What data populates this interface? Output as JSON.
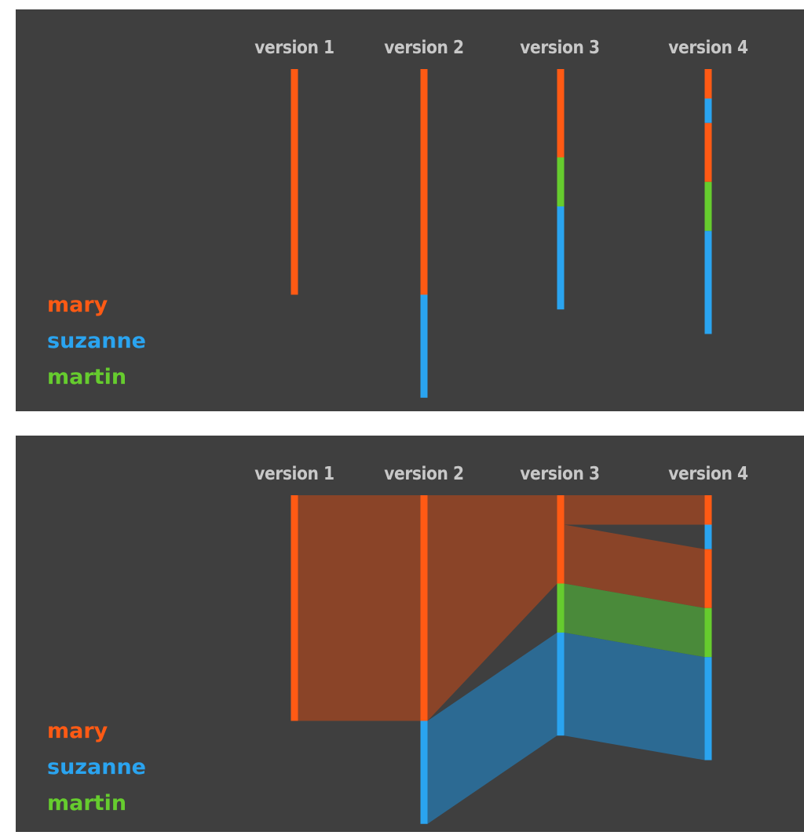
{
  "authors": [
    {
      "name": "mary",
      "color": "#ff5a14",
      "band_color": "#8a4428"
    },
    {
      "name": "suzanne",
      "color": "#2aa4f0",
      "band_color": "#2c6a93"
    },
    {
      "name": "martin",
      "color": "#66cc2e",
      "band_color": "#4a8a3a"
    }
  ],
  "versions": [
    "version 1",
    "version 2",
    "version 3",
    "version 4"
  ],
  "panels": [
    {
      "name": "version-history-bars",
      "show_flows": false
    },
    {
      "name": "version-history-flow",
      "show_flows": true
    }
  ],
  "chart_data": {
    "type": "history-flow",
    "unit": "relative share of document text",
    "versions": [
      {
        "label": "version 1",
        "segments": [
          {
            "author": "mary",
            "size": 46
          }
        ]
      },
      {
        "label": "version 2",
        "segments": [
          {
            "author": "mary",
            "size": 46
          },
          {
            "author": "suzanne",
            "size": 21
          }
        ]
      },
      {
        "label": "version 3",
        "segments": [
          {
            "author": "mary",
            "size": 18
          },
          {
            "author": "martin",
            "size": 10
          },
          {
            "author": "suzanne",
            "size": 21
          }
        ]
      },
      {
        "label": "version 4",
        "segments": [
          {
            "author": "mary",
            "size": 6
          },
          {
            "author": "suzanne",
            "size": 5
          },
          {
            "author": "mary",
            "size": 12
          },
          {
            "author": "martin",
            "size": 10
          },
          {
            "author": "suzanne",
            "size": 21
          }
        ]
      }
    ],
    "flows": [
      {
        "author": "mary",
        "from": 0,
        "from_segment": 0,
        "to": 1,
        "to_segment": 0
      },
      {
        "author": "mary",
        "from": 1,
        "from_segment": 0,
        "to": 2,
        "to_segment": 0
      },
      {
        "author": "suzanne",
        "from": 1,
        "from_segment": 1,
        "to": 2,
        "to_segment": 2
      },
      {
        "author": "mary",
        "from": 2,
        "from_segment": 0,
        "to": 3,
        "to_segment": 0,
        "portion": "first-third"
      },
      {
        "author": "mary",
        "from": 2,
        "from_segment": 0,
        "to": 3,
        "to_segment": 2,
        "portion": "last-two-thirds"
      },
      {
        "author": "martin",
        "from": 2,
        "from_segment": 1,
        "to": 3,
        "to_segment": 3
      },
      {
        "author": "suzanne",
        "from": 2,
        "from_segment": 2,
        "to": 3,
        "to_segment": 4
      }
    ]
  }
}
